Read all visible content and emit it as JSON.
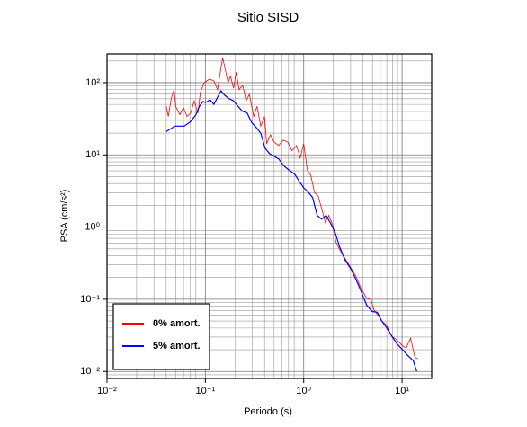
{
  "chart_data": {
    "type": "line",
    "title": "Sitio SISD",
    "x_label": "Periodo (s)",
    "y_label": "PSA (cm/s²)",
    "log_x": true,
    "log_y": true,
    "grid": true,
    "legend": "lower left",
    "xlim": [
      0.01,
      20
    ],
    "ylim": [
      0.008,
      250
    ],
    "xticks": [
      {
        "value": 0.01,
        "label": "10⁻²"
      },
      {
        "value": 0.1,
        "label": "10⁻¹"
      },
      {
        "value": 1,
        "label": "10⁰"
      },
      {
        "value": 10,
        "label": "10¹"
      }
    ],
    "yticks": [
      {
        "value": 0.01,
        "label": "10⁻²"
      },
      {
        "value": 0.1,
        "label": "10⁻¹"
      },
      {
        "value": 1,
        "label": "10⁰"
      },
      {
        "value": 10,
        "label": "10¹"
      },
      {
        "value": 100,
        "label": "10²"
      }
    ],
    "xminor": [
      0.02,
      0.03,
      0.04,
      0.05,
      0.06,
      0.07,
      0.08,
      0.09,
      0.2,
      0.3,
      0.4,
      0.5,
      0.6,
      0.7,
      0.8,
      0.9,
      2,
      3,
      4,
      5,
      6,
      7,
      8,
      9
    ],
    "yminor": [
      0.009,
      0.02,
      0.03,
      0.04,
      0.05,
      0.06,
      0.07,
      0.08,
      0.09,
      0.2,
      0.3,
      0.4,
      0.5,
      0.6,
      0.7,
      0.8,
      0.9,
      2,
      3,
      4,
      5,
      6,
      7,
      8,
      9,
      20,
      30,
      40,
      50,
      60,
      70,
      80,
      90,
      200
    ],
    "series": [
      {
        "name": "0% amort.",
        "color": "#ff0000",
        "x": [
          0.04,
          0.042,
          0.045,
          0.048,
          0.05,
          0.055,
          0.06,
          0.065,
          0.071,
          0.077,
          0.084,
          0.089,
          0.097,
          0.11,
          0.122,
          0.133,
          0.142,
          0.15,
          0.16,
          0.17,
          0.18,
          0.194,
          0.206,
          0.22,
          0.24,
          0.26,
          0.28,
          0.31,
          0.335,
          0.365,
          0.4,
          0.42,
          0.46,
          0.5,
          0.555,
          0.62,
          0.685,
          0.76,
          0.845,
          0.92,
          1.0,
          1.09,
          1.18,
          1.29,
          1.4,
          1.52,
          1.66,
          1.8,
          1.96,
          2.13,
          2.32,
          2.63,
          2.98,
          3.39,
          3.84,
          4.36,
          4.84,
          5.16,
          5.61,
          6.22,
          6.92,
          7.85,
          8.91,
          10.0,
          11.0,
          12.2,
          13.5,
          14.4
        ],
        "values": [
          47,
          34,
          60,
          80,
          47,
          36,
          45,
          34,
          38,
          56,
          38,
          73,
          100,
          112,
          106,
          80,
          140,
          222,
          148,
          100,
          123,
          84,
          140,
          80,
          92,
          56,
          69,
          34,
          47,
          25,
          34,
          14.3,
          19,
          15.1,
          13.5,
          16,
          15.1,
          11.4,
          13.5,
          9.1,
          14.3,
          6.1,
          5.2,
          3.0,
          2.7,
          1.82,
          1.15,
          1.45,
          1.09,
          0.62,
          0.49,
          0.37,
          0.28,
          0.21,
          0.14,
          0.104,
          0.098,
          0.072,
          0.062,
          0.05,
          0.044,
          0.031,
          0.027,
          0.023,
          0.021,
          0.029,
          0.0158,
          0.015
        ]
      },
      {
        "name": "5% amort.",
        "color": "#0000ff",
        "x": [
          0.04,
          0.049,
          0.061,
          0.071,
          0.08,
          0.087,
          0.095,
          0.1,
          0.112,
          0.122,
          0.133,
          0.144,
          0.157,
          0.175,
          0.194,
          0.215,
          0.239,
          0.266,
          0.296,
          0.328,
          0.365,
          0.405,
          0.449,
          0.499,
          0.555,
          0.63,
          0.714,
          0.81,
          0.9,
          1.0,
          1.11,
          1.23,
          1.37,
          1.52,
          1.69,
          1.88,
          2.09,
          2.32,
          2.63,
          2.98,
          3.39,
          3.84,
          4.36,
          4.94,
          5.61,
          6.22,
          6.92,
          7.85,
          8.91,
          10.1,
          11.4,
          13.0,
          14.1
        ],
        "values": [
          21,
          25,
          25,
          29,
          36,
          47,
          55,
          53,
          58,
          50,
          63,
          77,
          67,
          60,
          56,
          47,
          40,
          38,
          28,
          24,
          20,
          12.4,
          10.4,
          9.6,
          8.8,
          7.0,
          6.1,
          5.4,
          4.3,
          3.5,
          3.05,
          2.57,
          1.45,
          1.29,
          1.45,
          1.12,
          0.84,
          0.53,
          0.35,
          0.27,
          0.19,
          0.128,
          0.083,
          0.068,
          0.066,
          0.05,
          0.041,
          0.031,
          0.024,
          0.02,
          0.0167,
          0.0141,
          0.01
        ]
      }
    ]
  }
}
